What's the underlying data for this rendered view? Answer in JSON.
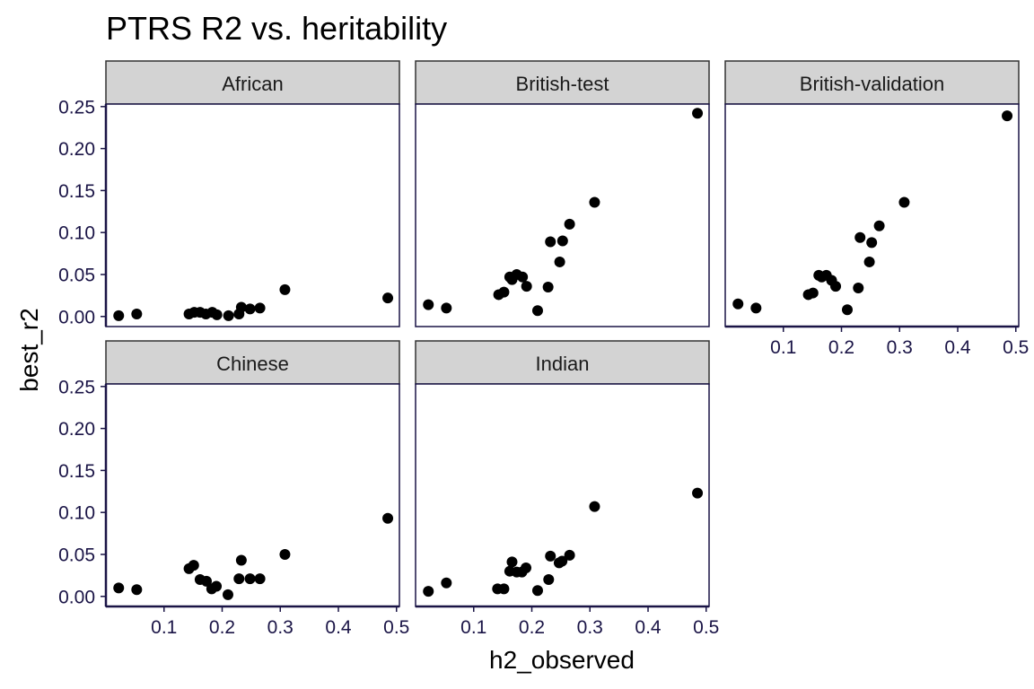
{
  "chart_data": {
    "type": "scatter",
    "title": "PTRS R2 vs. heritability",
    "xlabel": "h2_observed",
    "ylabel": "best_r2",
    "x_ticks": [
      "0.1",
      "0.2",
      "0.3",
      "0.4",
      "0.5"
    ],
    "y_ticks": [
      "0.00",
      "0.05",
      "0.10",
      "0.15",
      "0.20",
      "0.25"
    ],
    "xlim": [
      0.0,
      0.505
    ],
    "ylim": [
      -0.012,
      0.253
    ],
    "grid": false,
    "point_color": "#000000",
    "strip_fill": "#d3d3d3",
    "panel_border": "#1a1446",
    "panels": [
      {
        "name": "African",
        "x": [
          0.022,
          0.053,
          0.143,
          0.152,
          0.162,
          0.172,
          0.183,
          0.191,
          0.211,
          0.229,
          0.233,
          0.248,
          0.265,
          0.308,
          0.485
        ],
        "y": [
          0.001,
          0.003,
          0.003,
          0.005,
          0.005,
          0.003,
          0.005,
          0.002,
          0.001,
          0.003,
          0.011,
          0.009,
          0.01,
          0.032,
          0.022
        ]
      },
      {
        "name": "British-test",
        "x": [
          0.022,
          0.053,
          0.143,
          0.152,
          0.162,
          0.166,
          0.174,
          0.184,
          0.191,
          0.21,
          0.228,
          0.232,
          0.248,
          0.253,
          0.265,
          0.308,
          0.485
        ],
        "y": [
          0.014,
          0.01,
          0.026,
          0.029,
          0.047,
          0.044,
          0.05,
          0.047,
          0.036,
          0.007,
          0.035,
          0.089,
          0.065,
          0.09,
          0.11,
          0.136,
          0.242
        ]
      },
      {
        "name": "British-validation",
        "x": [
          0.022,
          0.053,
          0.143,
          0.151,
          0.161,
          0.166,
          0.174,
          0.183,
          0.19,
          0.21,
          0.229,
          0.232,
          0.248,
          0.252,
          0.265,
          0.308,
          0.485
        ],
        "y": [
          0.015,
          0.01,
          0.026,
          0.028,
          0.049,
          0.047,
          0.049,
          0.043,
          0.036,
          0.008,
          0.034,
          0.094,
          0.065,
          0.088,
          0.108,
          0.136,
          0.239
        ]
      },
      {
        "name": "Chinese",
        "x": [
          0.022,
          0.053,
          0.143,
          0.151,
          0.162,
          0.173,
          0.182,
          0.19,
          0.21,
          0.229,
          0.233,
          0.248,
          0.265,
          0.308,
          0.485
        ],
        "y": [
          0.01,
          0.008,
          0.033,
          0.037,
          0.02,
          0.018,
          0.009,
          0.012,
          0.002,
          0.021,
          0.043,
          0.021,
          0.021,
          0.05,
          0.093
        ]
      },
      {
        "name": "Indian",
        "x": [
          0.022,
          0.053,
          0.141,
          0.152,
          0.162,
          0.166,
          0.174,
          0.183,
          0.19,
          0.21,
          0.229,
          0.232,
          0.247,
          0.252,
          0.265,
          0.308,
          0.485
        ],
        "y": [
          0.006,
          0.016,
          0.009,
          0.009,
          0.03,
          0.041,
          0.029,
          0.029,
          0.034,
          0.007,
          0.02,
          0.048,
          0.04,
          0.042,
          0.049,
          0.107,
          0.123
        ]
      }
    ]
  }
}
